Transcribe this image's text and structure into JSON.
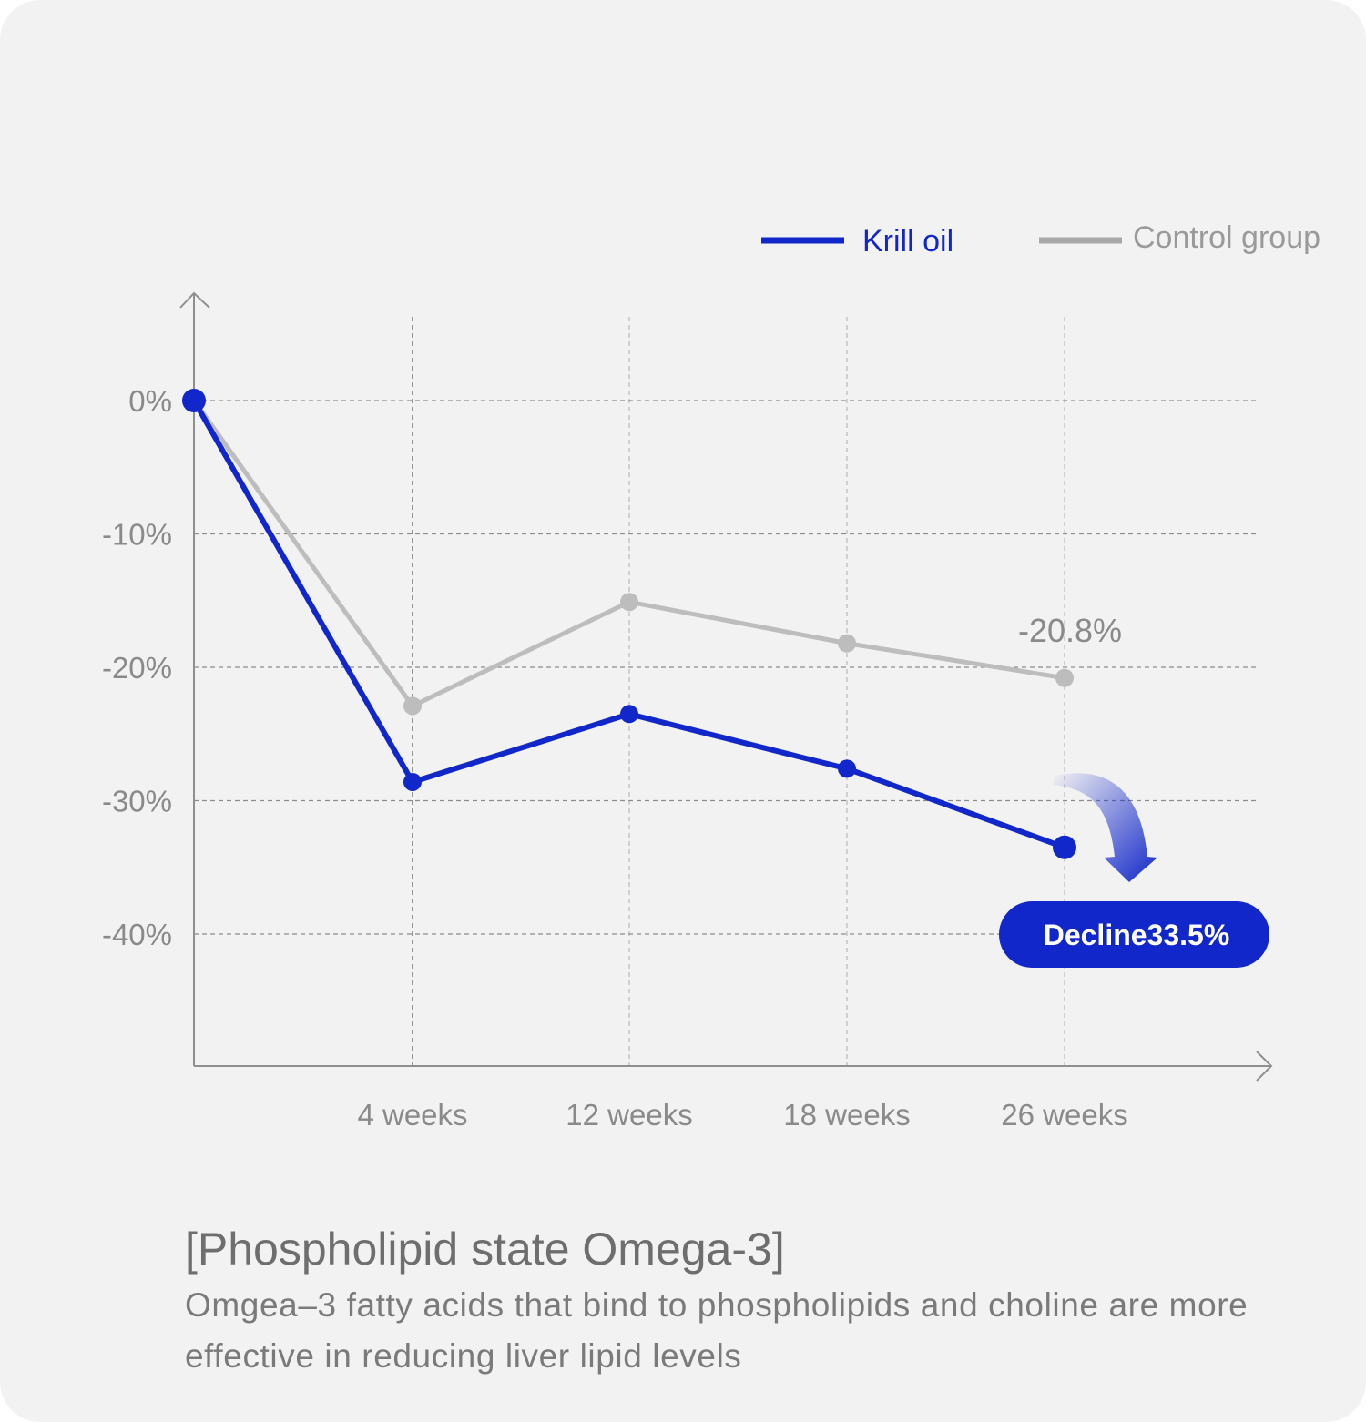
{
  "colors": {
    "background": "#f2f2f2",
    "krill": "#1227c9",
    "control": "#bdbdbd",
    "axis": "#8f8f8f",
    "grid": "#9a9a9a",
    "tick_text": "#8a8a8a"
  },
  "chart_data": {
    "type": "line",
    "categories": [
      "0",
      "4 weeks",
      "12 weeks",
      "18 weeks",
      "26 weeks"
    ],
    "x_tick_labels": [
      "",
      "4 weeks",
      "12 weeks",
      "18 weeks",
      "26 weeks"
    ],
    "y_ticks": [
      0,
      -10,
      -20,
      -30,
      -40
    ],
    "y_tick_labels": [
      "0%",
      "-10%",
      "-20%",
      "-30%",
      "-40%"
    ],
    "ylim": [
      -50,
      7
    ],
    "grid": "dashed",
    "legend_position": "top-right",
    "series": [
      {
        "name": "Krill oil",
        "color": "#1227c9",
        "values": [
          0,
          -28.6,
          -23.5,
          -27.6,
          -33.5
        ]
      },
      {
        "name": "Control group",
        "color": "#bdbdbd",
        "values": [
          0,
          -22.9,
          -15.1,
          -18.2,
          -20.8
        ]
      }
    ],
    "annotations": {
      "control_end": "-20.8%",
      "krill_badge": "Decline33.5%"
    }
  },
  "caption": {
    "title": "[Phospholipid state Omega-3]",
    "body": "Omgea–3 fatty acids that bind to phospholipids and choline are more effective in reducing liver lipid levels"
  }
}
